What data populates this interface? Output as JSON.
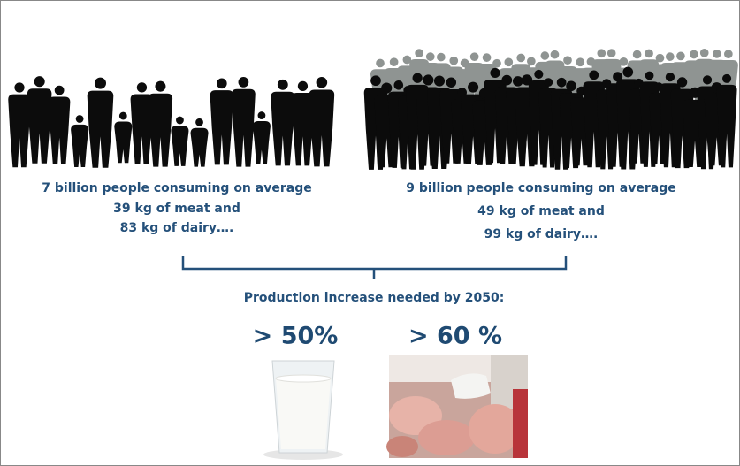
{
  "left": {
    "lines": [
      "7 billion people consuming on average",
      "39 kg of meat and",
      "83 kg of dairy…."
    ]
  },
  "right": {
    "lines": [
      "9 billion people consuming on average",
      "49 kg of meat and",
      "99 kg of dairy…."
    ]
  },
  "summary": {
    "title": "Production increase needed by 2050:",
    "dairy": "> 50%",
    "meat": "> 60 %"
  }
}
